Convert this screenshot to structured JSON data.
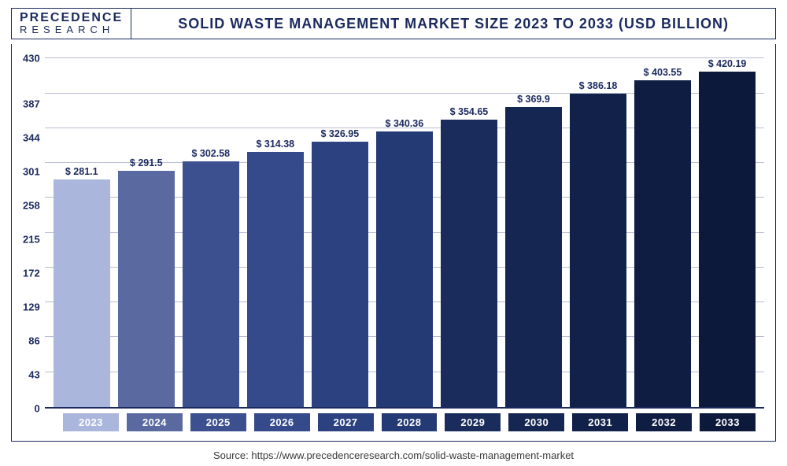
{
  "logo": {
    "line1": "PRECEDENCE",
    "line2": "RESEARCH"
  },
  "title": "SOLID WASTE MANAGEMENT MARKET SIZE 2023 TO 2033 (USD BILLION)",
  "source": "Source: https://www.precedenceresearch.com/solid-waste-management-market",
  "chart": {
    "type": "bar",
    "ylim": [
      0,
      430
    ],
    "ytick_step": 43,
    "yticks": [
      430,
      387,
      344,
      301,
      258,
      215,
      172,
      129,
      86,
      43,
      0
    ],
    "grid_color": "#b8bdd1",
    "axis_color": "#1b2a5e",
    "background_color": "#ffffff",
    "label_fontsize": 13,
    "value_fontsize": 12.5,
    "title_fontsize": 18,
    "bar_width": 0.82,
    "data": [
      {
        "year": "2023",
        "value": 281.1,
        "label": "$ 281.1",
        "bar_color": "#aab6dc",
        "xtick_color": "#aab6dc"
      },
      {
        "year": "2024",
        "value": 291.5,
        "label": "$ 291.5",
        "bar_color": "#5a6aa0",
        "xtick_color": "#5a6aa0"
      },
      {
        "year": "2025",
        "value": 302.58,
        "label": "$ 302.58",
        "bar_color": "#3c4f8e",
        "xtick_color": "#3c4f8e"
      },
      {
        "year": "2026",
        "value": 314.38,
        "label": "$ 314.38",
        "bar_color": "#344a8a",
        "xtick_color": "#344a8a"
      },
      {
        "year": "2027",
        "value": 326.95,
        "label": "$ 326.95",
        "bar_color": "#2c4280",
        "xtick_color": "#2c4280"
      },
      {
        "year": "2028",
        "value": 340.36,
        "label": "$ 340.36",
        "bar_color": "#243a74",
        "xtick_color": "#243a74"
      },
      {
        "year": "2029",
        "value": 354.65,
        "label": "$ 354.65",
        "bar_color": "#192c5c",
        "xtick_color": "#192c5c"
      },
      {
        "year": "2030",
        "value": 369.9,
        "label": "$ 369.9",
        "bar_color": "#152652",
        "xtick_color": "#152652"
      },
      {
        "year": "2031",
        "value": 386.18,
        "label": "$ 386.18",
        "bar_color": "#12214a",
        "xtick_color": "#12214a"
      },
      {
        "year": "2032",
        "value": 403.55,
        "label": "$ 403.55",
        "bar_color": "#0f1d42",
        "xtick_color": "#0f1d42"
      },
      {
        "year": "2033",
        "value": 420.19,
        "label": "$ 420.19",
        "bar_color": "#0c193a",
        "xtick_color": "#0c193a"
      }
    ]
  }
}
